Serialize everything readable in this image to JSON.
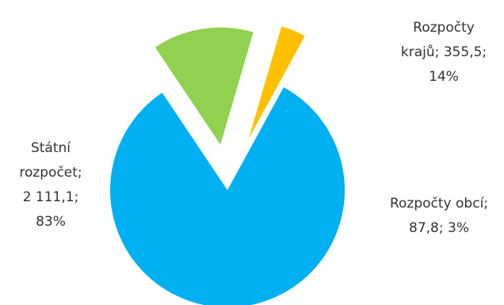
{
  "chart_data": {
    "type": "pie",
    "slices": [
      {
        "name": "Státní rozpočet",
        "value": 2111.1,
        "percent": 83,
        "color": "#00b0f0",
        "label_lines": [
          "Státní",
          "rozpočet;",
          "2 111,1;",
          "83%"
        ]
      },
      {
        "name": "Rozpočty krajů",
        "value": 355.5,
        "percent": 14,
        "color": "#92d050",
        "label_lines": [
          "Rozpočty",
          "krajů; 355,5;",
          "14%"
        ]
      },
      {
        "name": "Rozpočty obcí",
        "value": 87.8,
        "percent": 3,
        "color": "#ffc000",
        "label_lines": [
          "Rozpočty obcí;",
          "87,8; 3%"
        ]
      }
    ],
    "exploded": true,
    "legend": "none"
  }
}
